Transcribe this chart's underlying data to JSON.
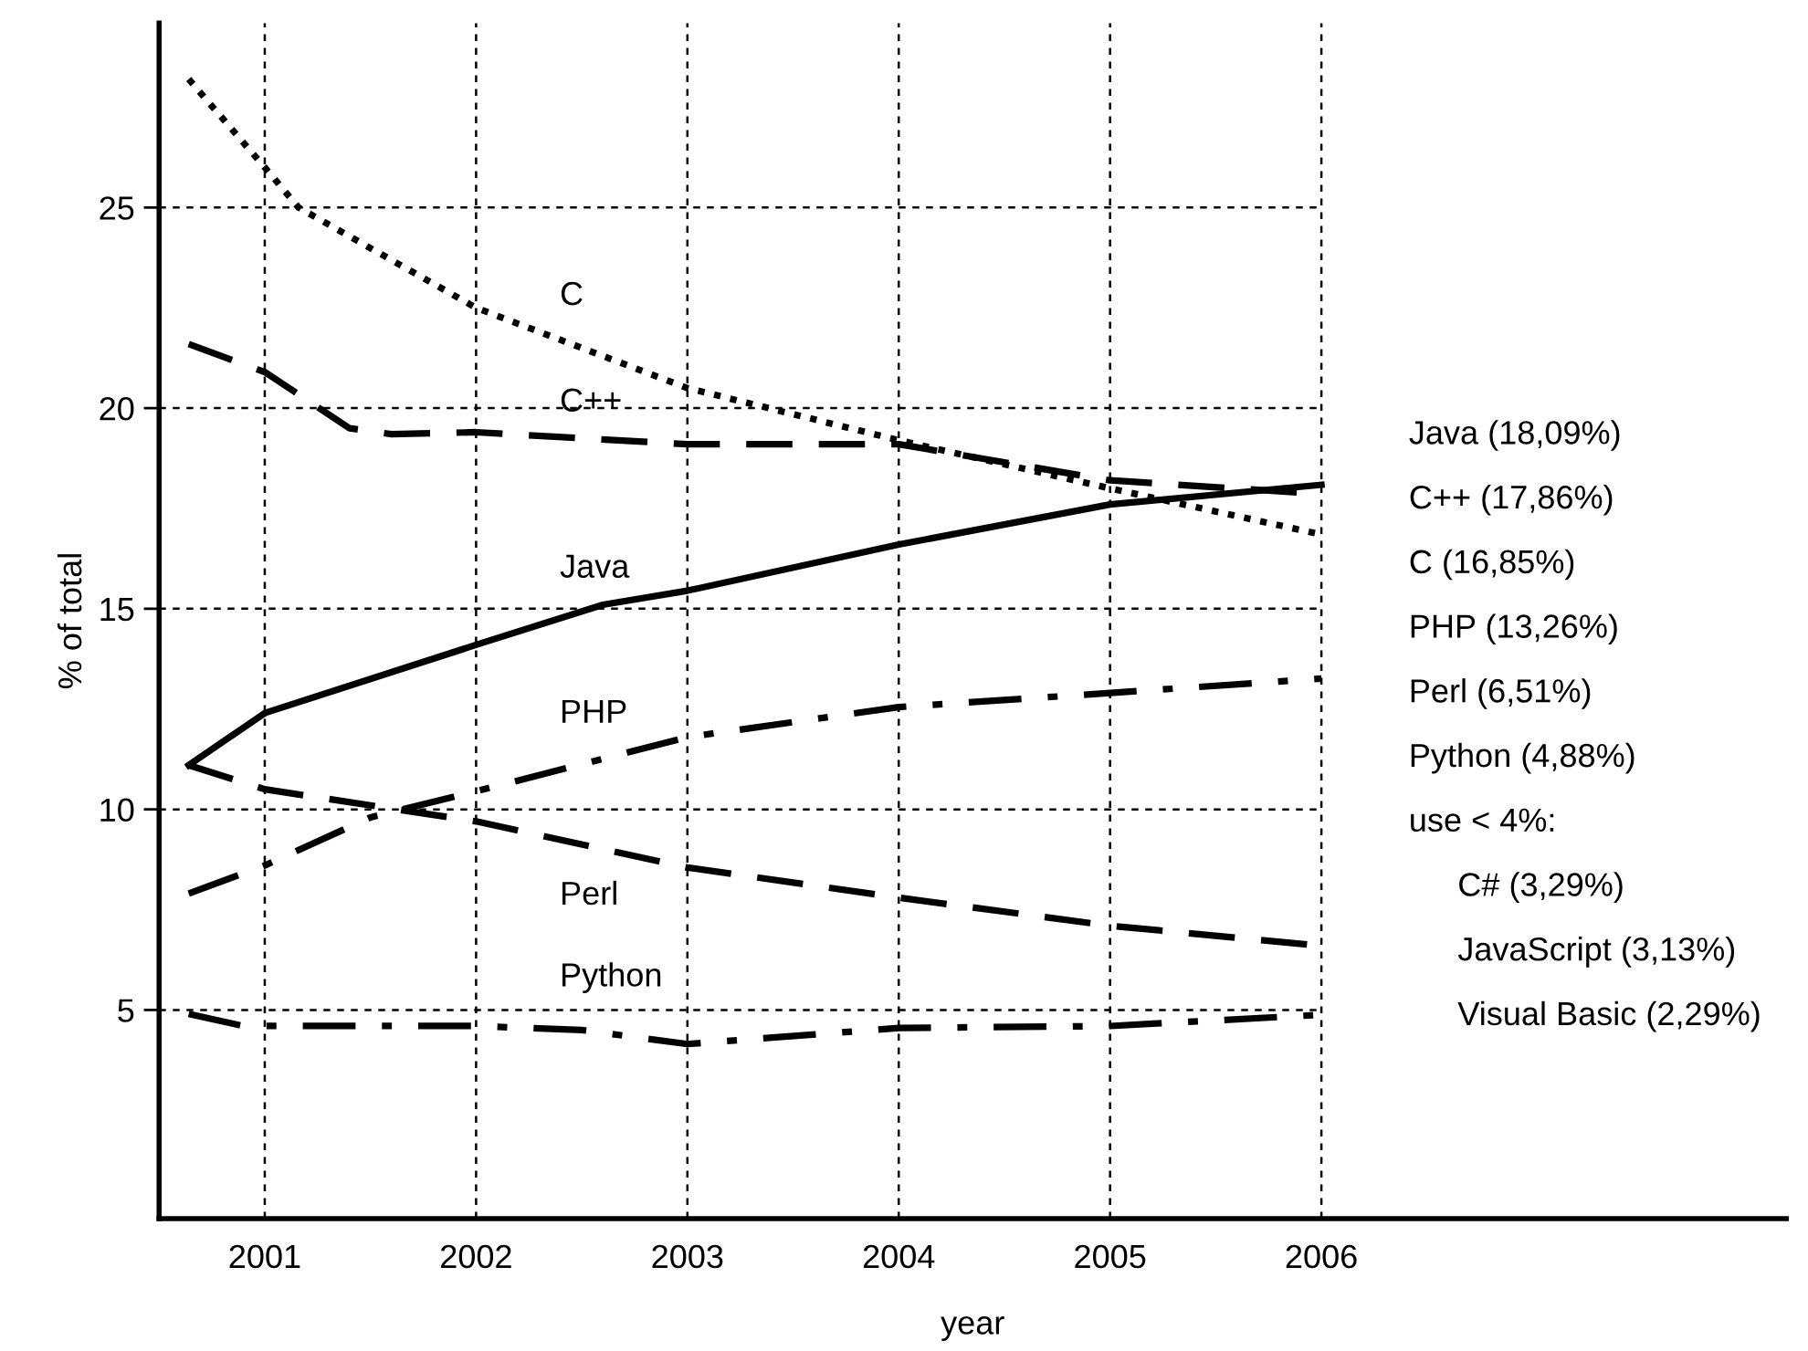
{
  "chart_data": {
    "type": "line",
    "xlabel": "year",
    "ylabel": "% of total",
    "xlim": [
      2000.5,
      2008.2
    ],
    "xticks": [
      2001,
      2002,
      2003,
      2004,
      2005,
      2006
    ],
    "ylim": [
      -0.2,
      29.6
    ],
    "yticks": [
      5,
      10,
      15,
      20,
      25
    ],
    "grid": true,
    "marker": "none",
    "series": [
      {
        "name": "C",
        "color": "#000000",
        "line_style": "dotted",
        "x": [
          2000.64,
          2001,
          2001.16,
          2002,
          2003,
          2004,
          2005,
          2006
        ],
        "values": [
          28.2,
          26.0,
          25.0,
          22.5,
          20.5,
          19.2,
          18.0,
          16.85
        ]
      },
      {
        "name": "C++",
        "color": "#000000",
        "line_style": "dashed",
        "x": [
          2000.64,
          2001,
          2001.4,
          2001.6,
          2002,
          2003,
          2004,
          2005,
          2006
        ],
        "values": [
          21.6,
          20.9,
          19.5,
          19.35,
          19.4,
          19.1,
          19.1,
          18.2,
          17.86
        ]
      },
      {
        "name": "Java",
        "color": "#000000",
        "line_style": "solid",
        "x": [
          2000.64,
          2001,
          2002,
          2002.6,
          2003,
          2004,
          2005,
          2006
        ],
        "values": [
          11.1,
          12.4,
          14.1,
          15.1,
          15.45,
          16.6,
          17.6,
          18.09
        ]
      },
      {
        "name": "PHP",
        "color": "#000000",
        "line_style": "dashdot",
        "x": [
          2000.64,
          2001,
          2001.5,
          2002,
          2003,
          2004,
          2005,
          2006
        ],
        "values": [
          7.9,
          8.6,
          9.8,
          10.45,
          11.8,
          12.55,
          12.9,
          13.26
        ]
      },
      {
        "name": "Perl",
        "color": "#000000",
        "line_style": "dashed",
        "x": [
          2000.64,
          2001,
          2002,
          2003,
          2004,
          2005,
          2006
        ],
        "values": [
          11.1,
          10.5,
          9.7,
          8.55,
          7.8,
          7.1,
          6.6
        ]
      },
      {
        "name": "Python",
        "color": "#000000",
        "line_style": "dashdot",
        "x": [
          2000.64,
          2000.9,
          2002,
          2002.5,
          2003,
          2004,
          2005,
          2006
        ],
        "values": [
          4.9,
          4.6,
          4.6,
          4.5,
          4.15,
          4.55,
          4.6,
          4.88
        ]
      }
    ],
    "annotations": [
      "Java (18,09%)",
      "C++ (17,86%)",
      "C (16,85%)",
      "PHP (13,26%)",
      "Perl (6,51%)",
      "Python (4,88%)",
      "use < 4%:",
      "C# (3,29%)",
      "JavaScript (3,13%)",
      "Visual Basic (2,29%)"
    ]
  }
}
